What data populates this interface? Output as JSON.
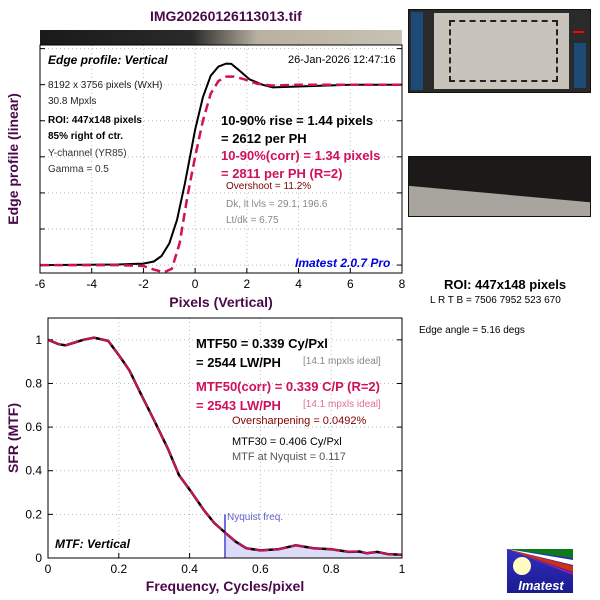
{
  "title": "IMG20260126113013.tif",
  "colors": {
    "axis_label": "#4a0a4a",
    "black_curve": "#000000",
    "corr_curve": "#d0105a",
    "version": "#0000dd",
    "nyquist": "#7070dd",
    "dark_red": "#800000"
  },
  "edge_panel": {
    "label": "Edge profile: Vertical",
    "timestamp": "26-Jan-2026 12:47:16",
    "info": [
      "8192 x 3756 pixels (WxH)",
      "30.8 Mpxls"
    ],
    "roi_info": [
      "ROI: 447x148 pixels",
      "85% right of ctr."
    ],
    "channel_info": [
      "Y-channel  (YR85)",
      "Gamma = 0.5"
    ],
    "rise": [
      "10-90% rise = 1.44 pixels",
      "= 2612 per PH"
    ],
    "rise_corr": [
      "10-90%(corr) = 1.34 pixels",
      "= 2811 per PH  (R=2)"
    ],
    "overshoot": "Overshoot = 11.2%",
    "levels": [
      "Dk, lt lvls = 29.1, 196.6",
      "Lt/dk = 6.75"
    ],
    "version": "Imatest 2.0.7 Pro"
  },
  "mtf_panel": {
    "label": "MTF: Vertical",
    "mtf50": [
      "MTF50 = 0.339 Cy/Pxl",
      "= 2544 LW/PH"
    ],
    "mtf50_ideal": "[14.1 mpxls ideal]",
    "mtf50_corr": [
      "MTF50(corr) = 0.339 C/P  (R=2)",
      "= 2543 LW/PH"
    ],
    "mtf50_corr_ideal": "[14.1 mpxls ideal]",
    "oversharpening": "Oversharpening = 0.0492%",
    "mtf30": "MTF30 = 0.406 Cy/Pxl",
    "nyquist_mtf": "MTF at Nyquist = 0.117",
    "nyquist_label": "Nyquist freq."
  },
  "right_panel": {
    "roi_title": "ROI: 447x148 pixels",
    "lrtb": "L R  T B = 7506 7952  523 670",
    "edge_angle": "Edge angle = 5.16 degs",
    "logo_text": "Imatest"
  },
  "chart_data": [
    {
      "type": "line",
      "title": "Edge profile: Vertical",
      "xlabel": "Pixels (Vertical)",
      "ylabel": "Edge profile (linear)",
      "xlim": [
        -6,
        8
      ],
      "ylim": [
        -0.044,
        1.22
      ],
      "xticks": [
        "-6",
        "-4",
        "-2",
        "0",
        "2",
        "4",
        "6",
        "8"
      ],
      "grid": true,
      "series": [
        {
          "name": "edge",
          "style": "solid",
          "x": [
            -6,
            -3,
            -2,
            -1.6,
            -1.3,
            -1,
            -0.7,
            -0.4,
            -0.2,
            0,
            0.3,
            0.6,
            0.9,
            1.2,
            1.4,
            1.7,
            2.1,
            2.6,
            3,
            4,
            6,
            8
          ],
          "y": [
            0,
            0.003,
            0.008,
            0.02,
            0.05,
            0.12,
            0.25,
            0.45,
            0.6,
            0.75,
            0.93,
            1.05,
            1.1,
            1.117,
            1.115,
            1.08,
            1.03,
            1.0,
            0.985,
            0.99,
            1.0,
            1.0
          ]
        },
        {
          "name": "corrected",
          "style": "dashed",
          "x": [
            -6,
            -3,
            -2,
            -1.6,
            -1.2,
            -0.9,
            -0.6,
            -0.3,
            0,
            0.3,
            0.6,
            0.9,
            1.2,
            1.5,
            1.9,
            2.4,
            3,
            4,
            6,
            8
          ],
          "y": [
            0,
            0,
            -0.005,
            -0.025,
            -0.04,
            -0.02,
            0.12,
            0.38,
            0.6,
            0.8,
            0.95,
            1.02,
            1.045,
            1.045,
            1.03,
            1.005,
            0.995,
            1.0,
            1.0,
            1.0
          ]
        }
      ]
    },
    {
      "type": "line",
      "title": "MTF: Vertical",
      "xlabel": "Frequency, Cycles/pixel",
      "ylabel": "SFR (MTF)",
      "xlim": [
        0,
        1
      ],
      "ylim": [
        0,
        1.1
      ],
      "xticks": [
        "0",
        "0.2",
        "0.4",
        "0.6",
        "0.8",
        "1"
      ],
      "yticks": [
        "0",
        "0.2",
        "0.4",
        "0.6",
        "0.8",
        "1"
      ],
      "grid": true,
      "nyquist": 0.5,
      "series": [
        {
          "name": "MTF",
          "x": [
            0,
            0.03,
            0.05,
            0.08,
            0.1,
            0.13,
            0.17,
            0.2,
            0.23,
            0.26,
            0.3,
            0.339,
            0.37,
            0.406,
            0.44,
            0.47,
            0.5,
            0.53,
            0.56,
            0.6,
            0.65,
            0.7,
            0.75,
            0.8,
            0.85,
            0.88,
            0.9,
            0.93,
            0.96,
            1.0
          ],
          "y": [
            1.0,
            0.98,
            0.975,
            0.99,
            1.0,
            1.01,
            0.995,
            0.93,
            0.86,
            0.76,
            0.63,
            0.5,
            0.38,
            0.3,
            0.22,
            0.16,
            0.117,
            0.075,
            0.045,
            0.035,
            0.04,
            0.058,
            0.045,
            0.04,
            0.028,
            0.03,
            0.022,
            0.028,
            0.018,
            0.015
          ]
        }
      ]
    }
  ]
}
